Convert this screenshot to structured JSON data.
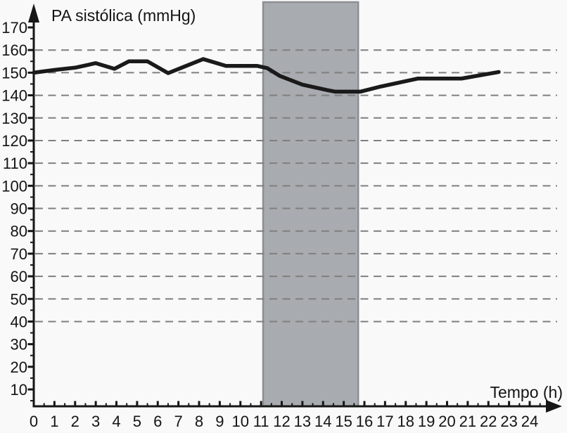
{
  "chart_data": {
    "type": "line",
    "title": "PA sistólica (mmHg)",
    "xlabel": "Tempo (h)",
    "ylabel": "PA sistólica (mmHg)",
    "x_ticks": [
      0,
      1,
      2,
      3,
      4,
      5,
      6,
      7,
      8,
      9,
      10,
      11,
      12,
      13,
      14,
      15,
      16,
      17,
      18,
      19,
      20,
      21,
      22,
      23,
      24
    ],
    "y_ticks": [
      10,
      20,
      30,
      40,
      50,
      60,
      70,
      80,
      90,
      100,
      110,
      120,
      130,
      140,
      150,
      160,
      170
    ],
    "grid_values": [
      40,
      50,
      60,
      70,
      80,
      90,
      100,
      110,
      120,
      130,
      140,
      150,
      160
    ],
    "xlim": [
      0,
      25.5
    ],
    "ylim": [
      0,
      178
    ],
    "grid": "dashed horizontal only",
    "legend": "none",
    "shaded_region": {
      "x_start": 11.1,
      "x_end": 15.7
    },
    "series": [
      {
        "name": "PA sistólica",
        "points": [
          [
            0,
            150
          ],
          [
            1,
            151.2
          ],
          [
            2,
            152.2
          ],
          [
            3,
            154.2
          ],
          [
            3.9,
            151.7
          ],
          [
            4.6,
            155
          ],
          [
            5.5,
            155
          ],
          [
            6.5,
            149.8
          ],
          [
            8.2,
            156
          ],
          [
            9.3,
            153
          ],
          [
            10.8,
            153
          ],
          [
            11.3,
            152
          ],
          [
            11.9,
            148.6
          ],
          [
            13,
            144.7
          ],
          [
            14.2,
            142.3
          ],
          [
            14.6,
            141.6
          ],
          [
            15.8,
            141.6
          ],
          [
            16.8,
            143.9
          ],
          [
            18.6,
            147.4
          ],
          [
            20.7,
            147.4
          ],
          [
            22.5,
            150.3
          ]
        ]
      }
    ],
    "colors": {
      "background": "#f9f9f9",
      "line": "#1a1a1a",
      "grid": "#7f7f7f",
      "axis": "#161616",
      "band_fill": "#a8abaf",
      "band_border": "#8b8e92",
      "text": "#141414"
    }
  }
}
